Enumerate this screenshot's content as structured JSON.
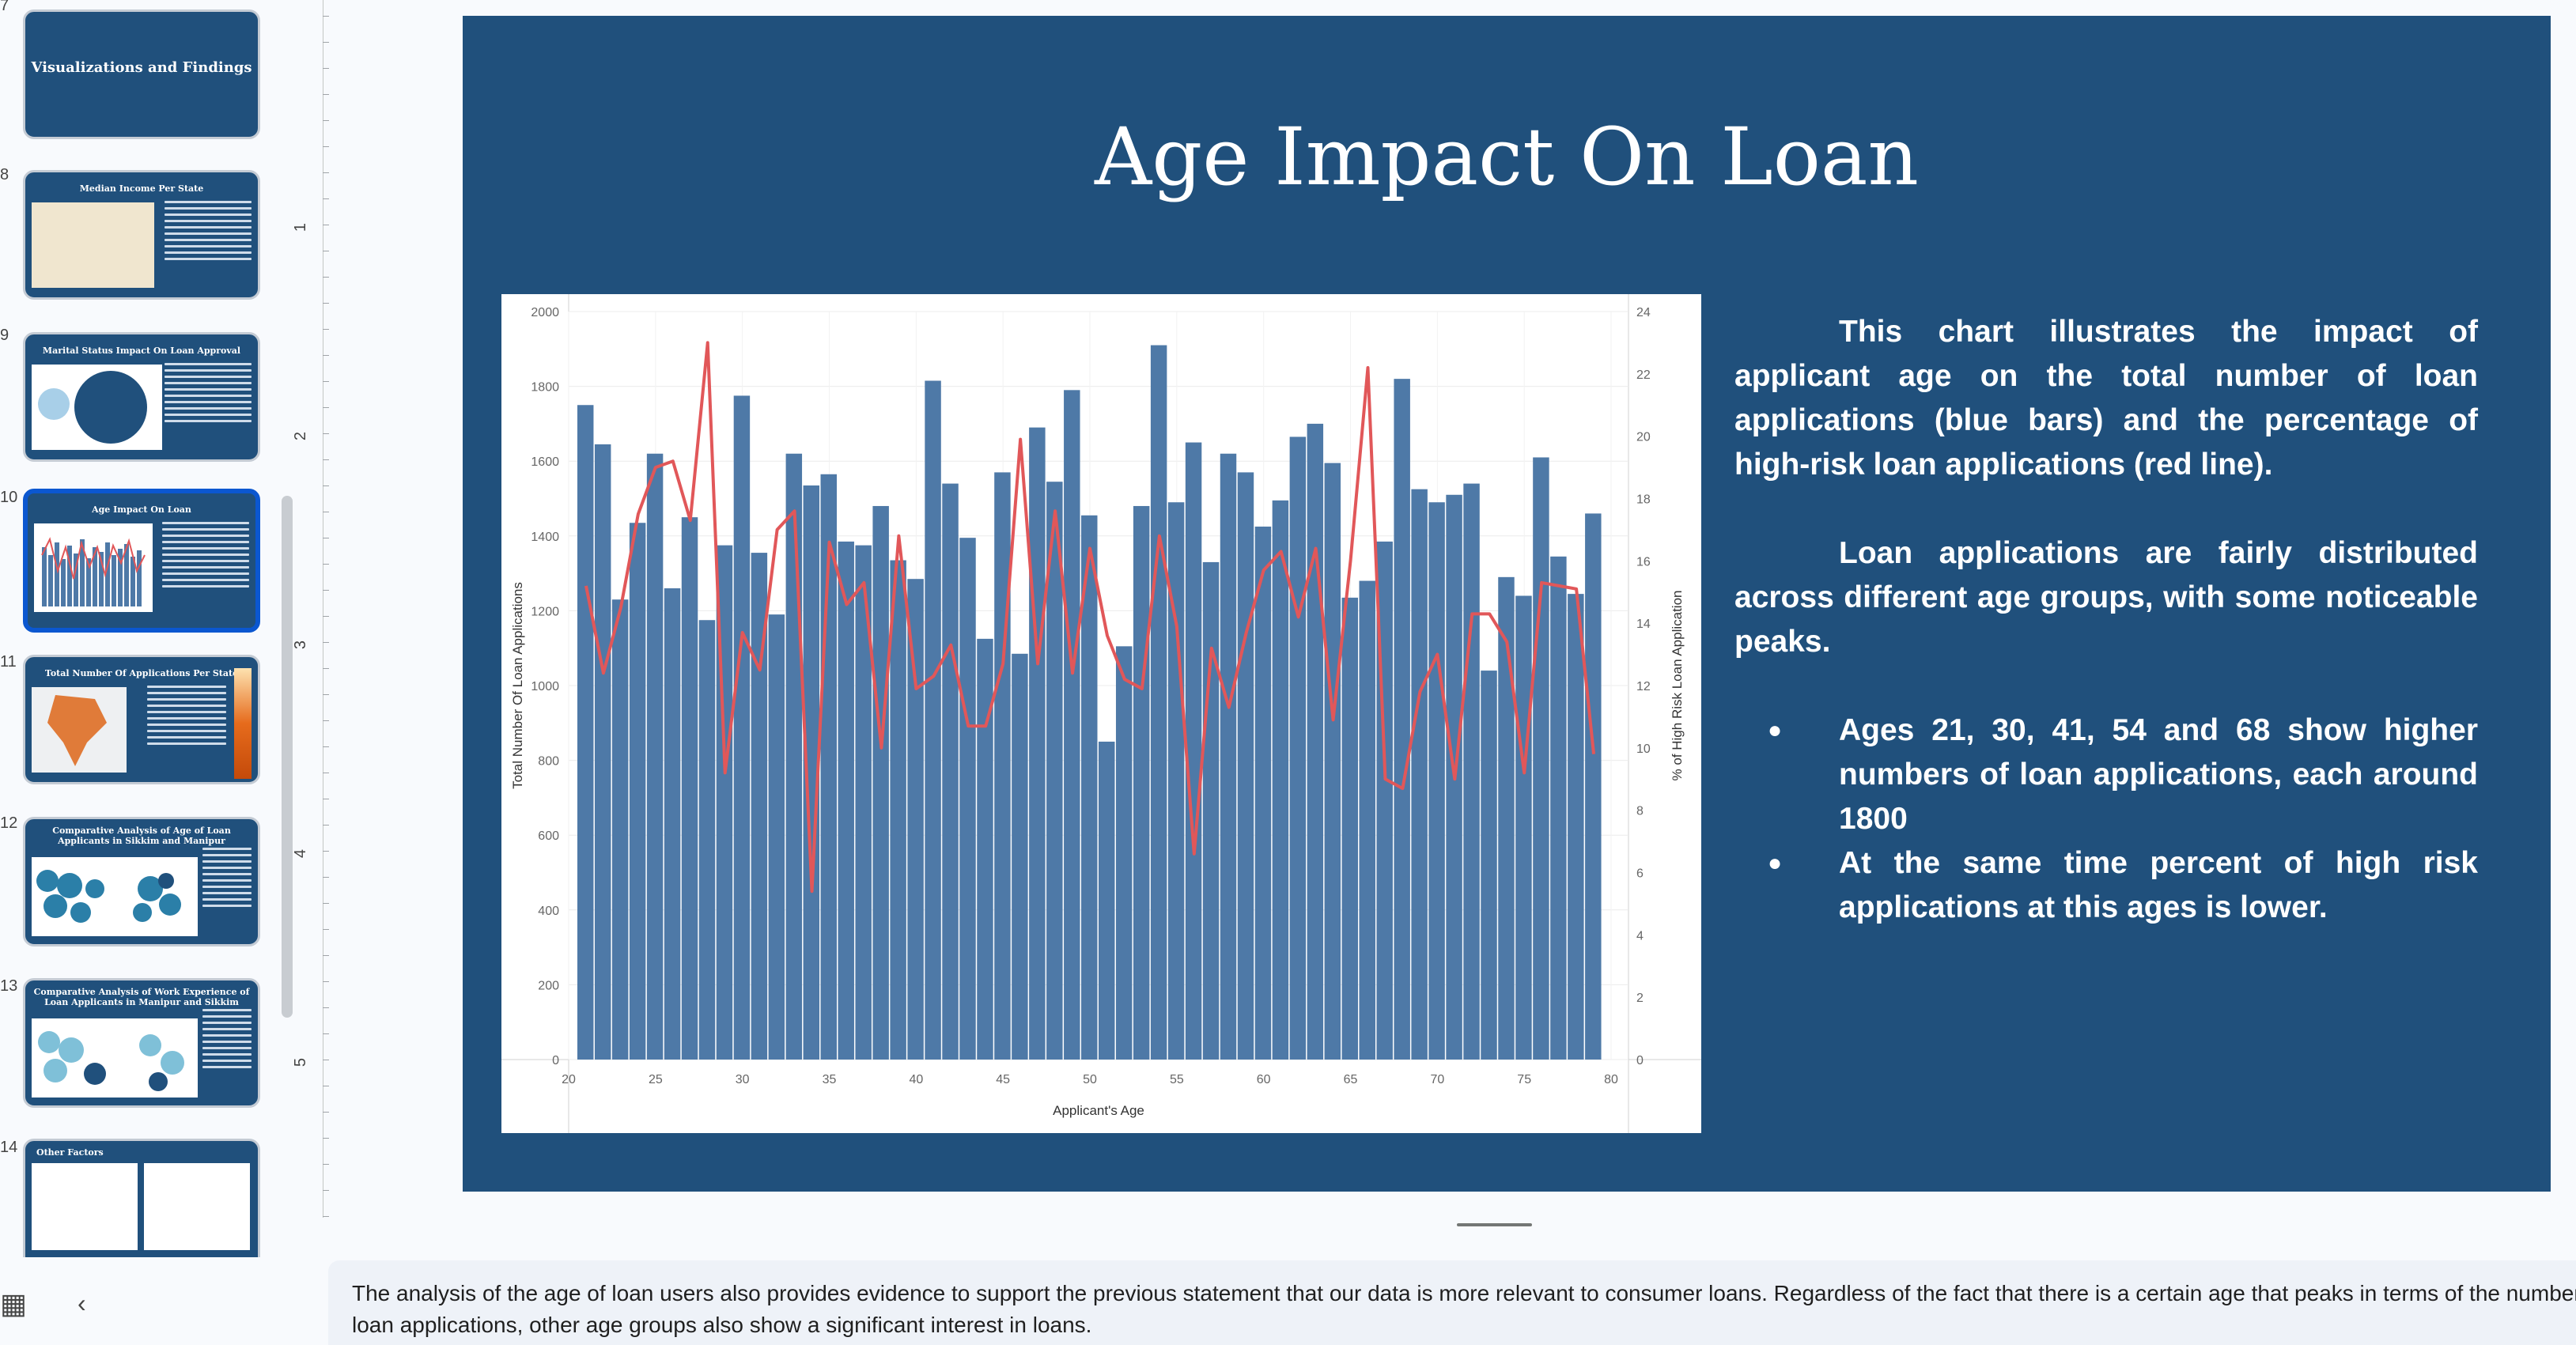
{
  "filmstrip": {
    "slide_numbers": [
      "7",
      "8",
      "9",
      "10",
      "11",
      "12",
      "13",
      "14"
    ],
    "thumbnails": [
      {
        "title": "Visualizations and Findings"
      },
      {
        "title": "Median Income Per State"
      },
      {
        "title": "Marital Status Impact On Loan Approval"
      },
      {
        "title": "Age Impact On Loan"
      },
      {
        "title": "Total Number Of Applications Per State"
      },
      {
        "title": "Comparative Analysis of Age of Loan Applicants in Sikkim and Manipur"
      },
      {
        "title": "Comparative Analysis of Work Experience of Loan Applicants in Manipur and Sikkim"
      },
      {
        "title": "Other Factors"
      }
    ]
  },
  "ruler": {
    "labels": [
      "1",
      "2",
      "3",
      "4",
      "5"
    ]
  },
  "slide": {
    "title": "Age Impact On Loan",
    "paragraph1": "This chart illustrates the impact of applicant age on the total number of loan applications (blue bars) and the percentage of high-risk loan applications (red line).",
    "paragraph2": "Loan applications are fairly distributed across different age groups, with some noticeable peaks.",
    "bullet1": "Ages 21, 30, 41, 54 and 68 show higher numbers of loan applications, each around 1800",
    "bullet2": "At the same time percent of high risk applications at this ages is lower."
  },
  "chart_data": {
    "type": "bar",
    "xlabel": "Applicant's Age",
    "ylabel": "Total Number Of Loan Applications",
    "y2label": "% of High Risk Loan Application",
    "xlim": [
      20,
      81
    ],
    "ylim": [
      0,
      2000
    ],
    "y2lim": [
      0,
      24
    ],
    "x_ticks": [
      20,
      25,
      30,
      35,
      40,
      45,
      50,
      55,
      60,
      65,
      70,
      75,
      80
    ],
    "y_ticks": [
      0,
      200,
      400,
      600,
      800,
      1000,
      1200,
      1400,
      1600,
      1800,
      2000
    ],
    "y2_ticks": [
      0,
      2,
      4,
      6,
      8,
      10,
      12,
      14,
      16,
      18,
      20,
      22,
      24
    ],
    "grid": true,
    "bar_color": "#4e79a7",
    "line_color": "#e15759",
    "x": [
      21,
      22,
      23,
      24,
      25,
      26,
      27,
      28,
      29,
      30,
      31,
      32,
      33,
      34,
      35,
      36,
      37,
      38,
      39,
      40,
      41,
      42,
      43,
      44,
      45,
      46,
      47,
      48,
      49,
      50,
      51,
      52,
      53,
      54,
      55,
      56,
      57,
      58,
      59,
      60,
      61,
      62,
      63,
      64,
      65,
      66,
      67,
      68,
      69,
      70,
      71,
      72,
      73,
      74,
      75,
      76,
      77,
      78,
      79
    ],
    "series": [
      {
        "type": "bar",
        "values": [
          1750,
          1645,
          1230,
          1435,
          1620,
          1260,
          1450,
          1175,
          1375,
          1775,
          1355,
          1190,
          1620,
          1535,
          1565,
          1385,
          1375,
          1480,
          1335,
          1285,
          1815,
          1540,
          1395,
          1125,
          1570,
          1085,
          1690,
          1545,
          1790,
          1455,
          850,
          1105,
          1480,
          1910,
          1490,
          1650,
          1330,
          1620,
          1570,
          1425,
          1495,
          1665,
          1700,
          1595,
          1235,
          1280,
          1385,
          1820,
          1525,
          1490,
          1510,
          1540,
          1040,
          1290,
          1240,
          1610,
          1345,
          1245,
          1460
        ]
      },
      {
        "type": "line",
        "values": [
          15.2,
          12.4,
          14.5,
          17.5,
          19.0,
          19.2,
          17.3,
          23.0,
          9.2,
          13.7,
          12.5,
          17.0,
          17.6,
          5.4,
          16.6,
          14.6,
          15.3,
          10.0,
          16.8,
          11.9,
          12.3,
          13.3,
          10.7,
          10.7,
          12.7,
          19.9,
          12.7,
          17.6,
          12.4,
          16.4,
          13.6,
          12.2,
          11.9,
          16.8,
          13.9,
          6.6,
          13.2,
          11.3,
          13.7,
          15.7,
          16.3,
          14.2,
          16.4,
          10.9,
          16.0,
          22.2,
          9.0,
          8.7,
          11.8,
          13.0,
          9.0,
          14.3,
          14.3,
          13.4,
          9.2,
          15.3,
          15.2,
          15.1,
          9.8
        ]
      }
    ]
  },
  "notes": {
    "text": "The analysis of the age of loan users also provides evidence to support the previous statement that our data is more relevant to consumer loans. Regardless of the fact that there is a certain age that peaks in terms of the number of loan applications, other age groups also show a significant interest in loans."
  },
  "icons": {
    "grid_view": "grid-view-icon",
    "collapse": "chevron-left-icon"
  }
}
